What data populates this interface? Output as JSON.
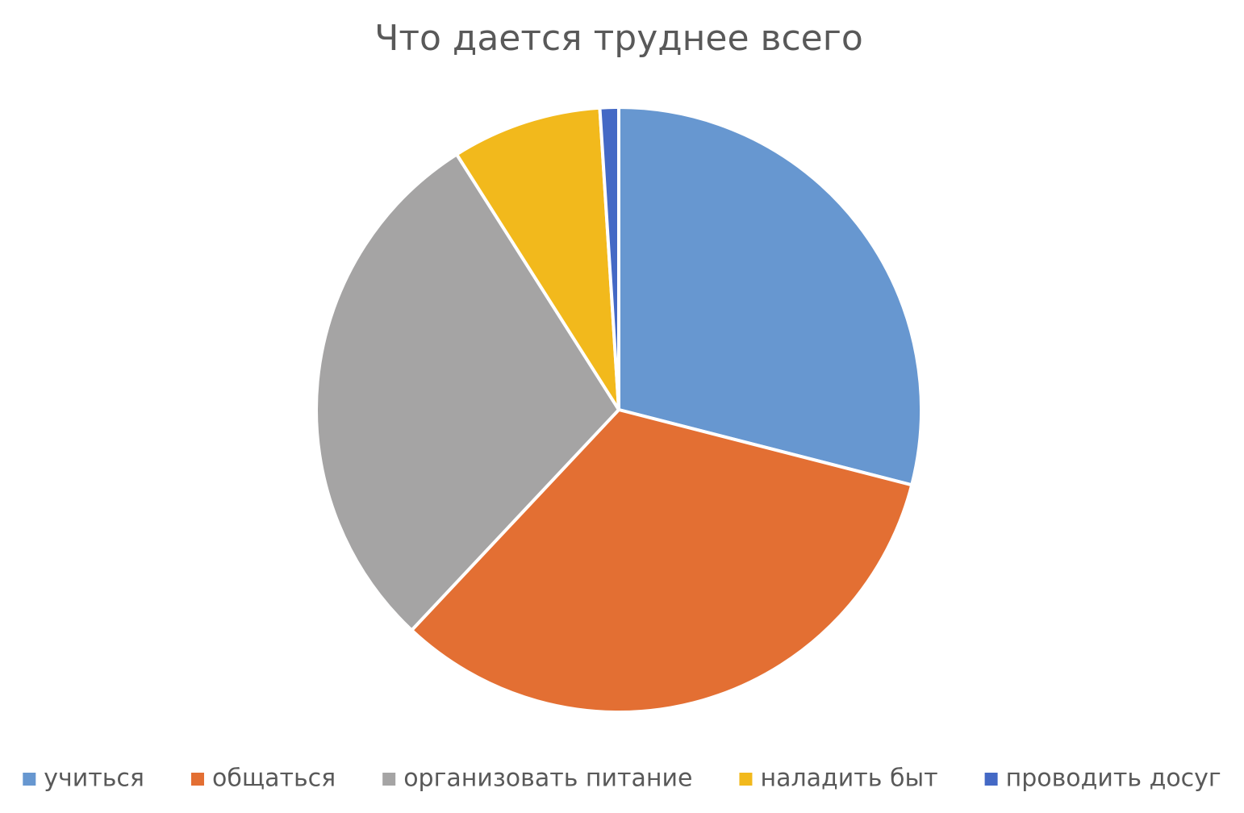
{
  "chart_data": {
    "type": "pie",
    "title": "Что дается труднее всего",
    "categories": [
      "учиться",
      "общаться",
      "организовать питание",
      "наладить быт",
      "проводить досуг"
    ],
    "values": [
      29,
      33,
      29,
      8,
      1
    ],
    "colors": [
      "#6797d0",
      "#e36f33",
      "#a5a4a4",
      "#f2b91c",
      "#4469c5"
    ],
    "legend": "bottom"
  }
}
